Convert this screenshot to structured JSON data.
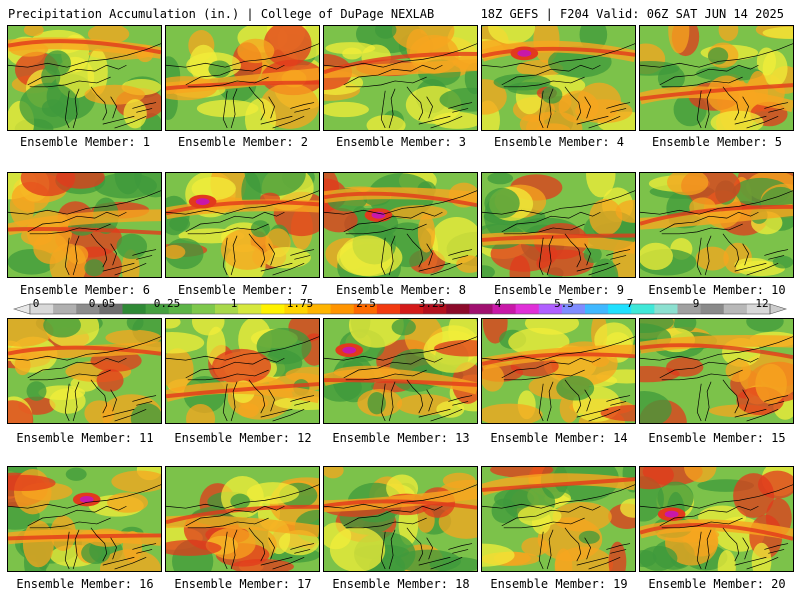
{
  "header": {
    "title": "Precipitation Accumulation (in.) | College of DuPage NEXLAB",
    "run_info": "18Z GEFS | F204 Valid: 06Z SAT JUN 14 2025"
  },
  "colorbar": {
    "labels": [
      "0",
      "0.05",
      "0.25",
      "1",
      "1.75",
      "2.5",
      "3.25",
      "4",
      "5.5",
      "7",
      "9",
      "12"
    ],
    "colors": [
      "#d9d9d9",
      "#b0b0b0",
      "#8c8c8c",
      "#6e6e6e",
      "#2f8a36",
      "#46a040",
      "#5cb446",
      "#7ec84c",
      "#a8d84a",
      "#d6e83e",
      "#fff200",
      "#ffd400",
      "#ffb400",
      "#ff9400",
      "#ff6a00",
      "#f23a10",
      "#d41a1a",
      "#b4101e",
      "#8c0a2a",
      "#a01070",
      "#c818a8",
      "#e030d8",
      "#b060ff",
      "#7f8cff",
      "#40b8ff",
      "#20e0ff",
      "#40e8d8",
      "#8ce0d0",
      "#a0a0a0",
      "#8a8a8a",
      "#b8b8b8",
      "#d8d8d8"
    ]
  },
  "members": [
    {
      "label": "Ensemble Member: 1"
    },
    {
      "label": "Ensemble Member: 2"
    },
    {
      "label": "Ensemble Member: 3"
    },
    {
      "label": "Ensemble Member: 4"
    },
    {
      "label": "Ensemble Member: 5"
    },
    {
      "label": "Ensemble Member: 6"
    },
    {
      "label": "Ensemble Member: 7"
    },
    {
      "label": "Ensemble Member: 8"
    },
    {
      "label": "Ensemble Member: 9"
    },
    {
      "label": "Ensemble Member: 10"
    },
    {
      "label": "Ensemble Member: 11"
    },
    {
      "label": "Ensemble Member: 12"
    },
    {
      "label": "Ensemble Member: 13"
    },
    {
      "label": "Ensemble Member: 14"
    },
    {
      "label": "Ensemble Member: 15"
    },
    {
      "label": "Ensemble Member: 16"
    },
    {
      "label": "Ensemble Member: 17"
    },
    {
      "label": "Ensemble Member: 18"
    },
    {
      "label": "Ensemble Member: 19"
    },
    {
      "label": "Ensemble Member: 20"
    }
  ],
  "colors": {
    "map_base_green": "#7cc24a",
    "dark_green": "#3f9a3c",
    "yellow": "#f2ee3a",
    "orange": "#f7a61f",
    "red": "#e23a1c",
    "magenta": "#c818a8",
    "purple": "#8060e0"
  }
}
